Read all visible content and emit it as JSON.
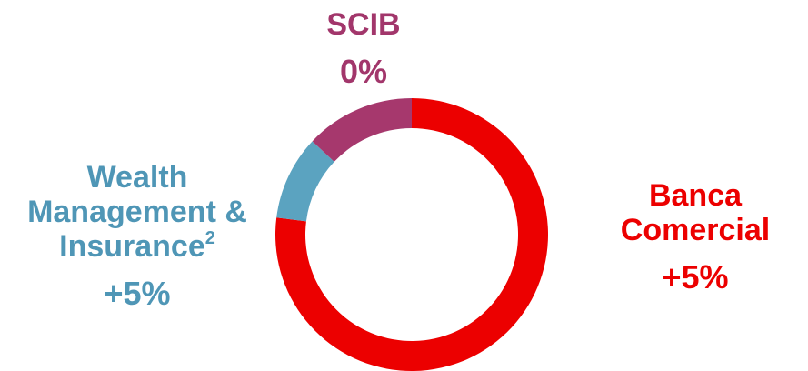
{
  "chart_data": {
    "type": "donut",
    "categories": [
      "Banca Comercial",
      "Wealth Management & Insurance",
      "SCIB"
    ],
    "values": [
      77,
      10,
      13
    ],
    "colors": [
      "#ec0000",
      "#5ba3c0",
      "#a6386d"
    ],
    "label_colors": [
      "#ec0000",
      "#4f96b6",
      "#a2366b"
    ],
    "change_labels": [
      "+5%",
      "+5%",
      "0%"
    ],
    "footnote_marks": [
      {
        "index": 1,
        "text": "2"
      }
    ]
  }
}
